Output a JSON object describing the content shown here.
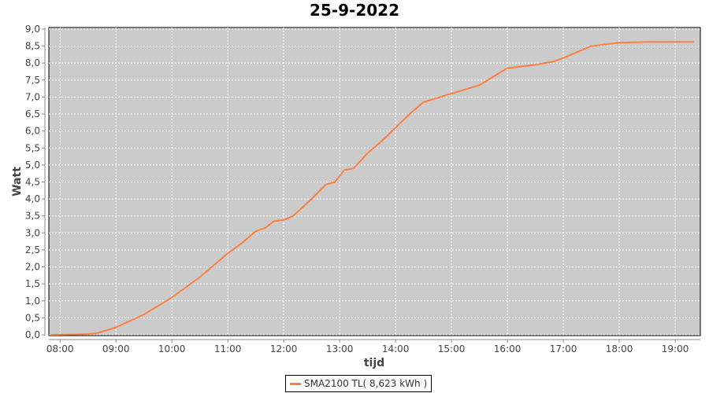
{
  "chart_data": {
    "type": "line",
    "title": "25-9-2022",
    "xlabel": "tijd",
    "ylabel": "Watt",
    "ylim": [
      0,
      9
    ],
    "xlim": [
      "07:48",
      "19:27"
    ],
    "grid": true,
    "legend_position": "bottom",
    "y_ticks": [
      "0,0",
      "0,5",
      "1,0",
      "1,5",
      "2,0",
      "2,5",
      "3,0",
      "3,5",
      "4,0",
      "4,5",
      "5,0",
      "5,5",
      "6,0",
      "6,5",
      "7,0",
      "7,5",
      "8,0",
      "8,5",
      "9,0"
    ],
    "x_ticks": [
      "08:00",
      "09:00",
      "10:00",
      "11:00",
      "12:00",
      "13:00",
      "14:00",
      "15:00",
      "16:00",
      "17:00",
      "18:00",
      "19:00"
    ],
    "series": [
      {
        "name": "SMA2100 TL( 8,623 kWh )",
        "color": "#ff7f3f",
        "x": [
          "07:50",
          "08:30",
          "08:40",
          "09:00",
          "09:30",
          "10:00",
          "10:30",
          "11:00",
          "11:15",
          "11:30",
          "11:40",
          "11:50",
          "12:00",
          "12:10",
          "12:30",
          "12:45",
          "12:55",
          "13:05",
          "13:15",
          "13:30",
          "13:45",
          "14:00",
          "14:15",
          "14:30",
          "15:00",
          "15:30",
          "15:45",
          "16:00",
          "16:30",
          "16:50",
          "17:00",
          "17:30",
          "18:00",
          "18:30",
          "19:20"
        ],
        "values": [
          0,
          0.02,
          0.05,
          0.22,
          0.6,
          1.1,
          1.7,
          2.4,
          2.7,
          3.05,
          3.15,
          3.35,
          3.38,
          3.5,
          4.0,
          4.42,
          4.5,
          4.85,
          4.9,
          5.35,
          5.7,
          6.1,
          6.5,
          6.85,
          7.1,
          7.35,
          7.6,
          7.85,
          7.95,
          8.05,
          8.15,
          8.5,
          8.6,
          8.62,
          8.623
        ]
      }
    ]
  },
  "colors": {
    "plot_background": "#cbcbcb",
    "grid": "#ffffff"
  }
}
